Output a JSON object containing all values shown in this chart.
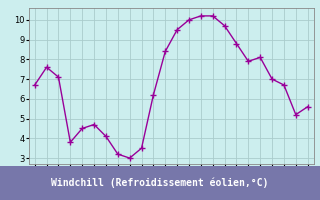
{
  "x": [
    0,
    1,
    2,
    3,
    4,
    5,
    6,
    7,
    8,
    9,
    10,
    11,
    12,
    13,
    14,
    15,
    16,
    17,
    18,
    19,
    20,
    21,
    22,
    23
  ],
  "y": [
    6.7,
    7.6,
    7.1,
    3.8,
    4.5,
    4.7,
    4.1,
    3.2,
    3.0,
    3.5,
    6.2,
    8.4,
    9.5,
    10.0,
    10.2,
    10.2,
    9.7,
    8.8,
    7.9,
    8.1,
    7.0,
    6.7,
    5.2,
    5.6
  ],
  "line_color": "#990099",
  "marker": "+",
  "marker_size": 4,
  "line_width": 1.0,
  "bg_color": "#cceeee",
  "grid_color": "#aacccc",
  "xlabel": "Windchill (Refroidissement éolien,°C)",
  "xlabel_fontsize": 7,
  "ylabel_ticks": [
    3,
    4,
    5,
    6,
    7,
    8,
    9,
    10
  ],
  "xlim": [
    -0.5,
    23.5
  ],
  "ylim": [
    2.7,
    10.6
  ],
  "tick_fontsize": 6,
  "xlabel_color": "white",
  "xlabel_bg": "#7777aa"
}
